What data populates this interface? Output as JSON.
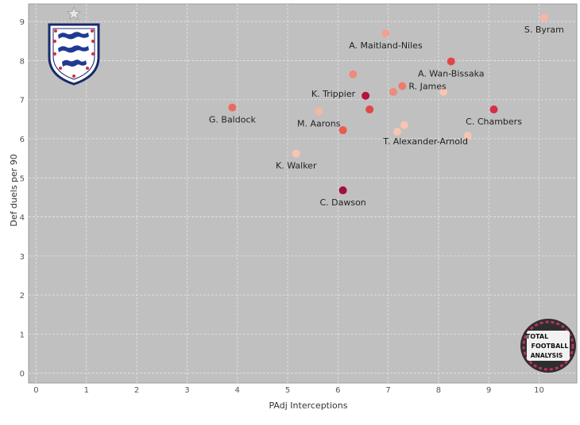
{
  "chart_data": {
    "type": "scatter",
    "title": "",
    "xlabel": "PAdj Interceptions",
    "ylabel": "Def duels per 90",
    "xlim": [
      -0.15,
      10.75
    ],
    "ylim": [
      -0.25,
      9.45
    ],
    "xticks": [
      0,
      1,
      2,
      3,
      4,
      5,
      6,
      7,
      8,
      9,
      10
    ],
    "yticks": [
      0,
      1,
      2,
      3,
      4,
      5,
      6,
      7,
      8,
      9
    ],
    "grid": true,
    "points": [
      {
        "x": 10.1,
        "y": 9.1,
        "label": "S. Byram",
        "color": "#f5b6a6",
        "label_pos": "below"
      },
      {
        "x": 6.95,
        "y": 8.7,
        "label": "A. Maitland-Niles",
        "color": "#f2a090",
        "label_pos": "below"
      },
      {
        "x": 8.25,
        "y": 7.98,
        "label": "A. Wan-Bissaka",
        "color": "#e04848",
        "label_pos": "below"
      },
      {
        "x": 6.3,
        "y": 7.65,
        "label": "",
        "color": "#f08a7c"
      },
      {
        "x": 7.28,
        "y": 7.35,
        "label": "R. James",
        "color": "#ef7a6e",
        "label_pos": "right"
      },
      {
        "x": 7.1,
        "y": 7.2,
        "label": "",
        "color": "#f08a7c"
      },
      {
        "x": 8.1,
        "y": 7.2,
        "label": "",
        "color": "#f8c4b4"
      },
      {
        "x": 6.55,
        "y": 7.1,
        "label": "K. Trippier",
        "color": "#b5123e",
        "label_pos": "left"
      },
      {
        "x": 3.9,
        "y": 6.8,
        "label": "G. Baldock",
        "color": "#ed6a60",
        "label_pos": "below"
      },
      {
        "x": 9.1,
        "y": 6.75,
        "label": "C. Chambers",
        "color": "#d2304a",
        "label_pos": "below"
      },
      {
        "x": 6.63,
        "y": 6.75,
        "label": "",
        "color": "#e04848"
      },
      {
        "x": 5.62,
        "y": 6.7,
        "label": "M. Aarons",
        "color": "#f5b6a6",
        "label_pos": "below"
      },
      {
        "x": 7.32,
        "y": 6.35,
        "label": "",
        "color": "#f8c4b4"
      },
      {
        "x": 6.1,
        "y": 6.22,
        "label": "T. Alexander-Arnold",
        "color": "#ea5a52",
        "label_pos": "belowright"
      },
      {
        "x": 7.18,
        "y": 6.18,
        "label": "",
        "color": "#f8c4b4"
      },
      {
        "x": 8.58,
        "y": 6.08,
        "label": "",
        "color": "#f8c4b4"
      },
      {
        "x": 5.17,
        "y": 5.62,
        "label": "K. Walker",
        "color": "#f8c4b4",
        "label_pos": "below"
      },
      {
        "x": 6.1,
        "y": 4.68,
        "label": "C. Dawson",
        "color": "#a0103a",
        "label_pos": "below"
      }
    ]
  },
  "crest": {
    "name": "England crest"
  },
  "watermark": {
    "lines": [
      "TOTAL",
      "FOOTBALL",
      "ANALYSIS"
    ]
  }
}
